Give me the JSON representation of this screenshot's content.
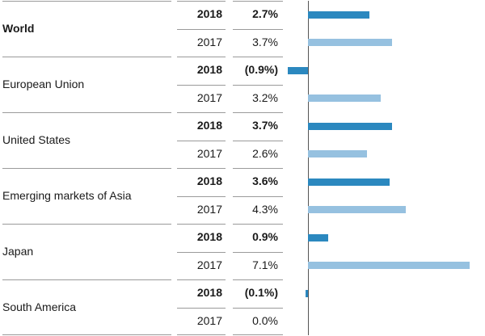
{
  "chart_data": {
    "type": "bar",
    "orientation": "horizontal",
    "colors": {
      "y2018": "#2b88bf",
      "y2017": "#96c1e0"
    },
    "groups": [
      {
        "region": "World",
        "region_bold": true,
        "rows": [
          {
            "year": "2018",
            "label": "2.7%",
            "value": 2.7
          },
          {
            "year": "2017",
            "label": "3.7%",
            "value": 3.7
          }
        ]
      },
      {
        "region": "European Union",
        "region_bold": false,
        "rows": [
          {
            "year": "2018",
            "label": "(0.9%)",
            "value": -0.9
          },
          {
            "year": "2017",
            "label": "3.2%",
            "value": 3.2
          }
        ]
      },
      {
        "region": "United States",
        "region_bold": false,
        "rows": [
          {
            "year": "2018",
            "label": "3.7%",
            "value": 3.7
          },
          {
            "year": "2017",
            "label": "2.6%",
            "value": 2.6
          }
        ]
      },
      {
        "region": "Emerging markets of Asia",
        "region_bold": false,
        "rows": [
          {
            "year": "2018",
            "label": "3.6%",
            "value": 3.6
          },
          {
            "year": "2017",
            "label": "4.3%",
            "value": 4.3
          }
        ]
      },
      {
        "region": "Japan",
        "region_bold": false,
        "rows": [
          {
            "year": "2018",
            "label": "0.9%",
            "value": 0.9
          },
          {
            "year": "2017",
            "label": "7.1%",
            "value": 7.1
          }
        ]
      },
      {
        "region": "South America",
        "region_bold": false,
        "rows": [
          {
            "year": "2018",
            "label": "(0.1%)",
            "value": -0.1
          },
          {
            "year": "2017",
            "label": "0.0%",
            "value": 0.0
          }
        ]
      }
    ]
  }
}
